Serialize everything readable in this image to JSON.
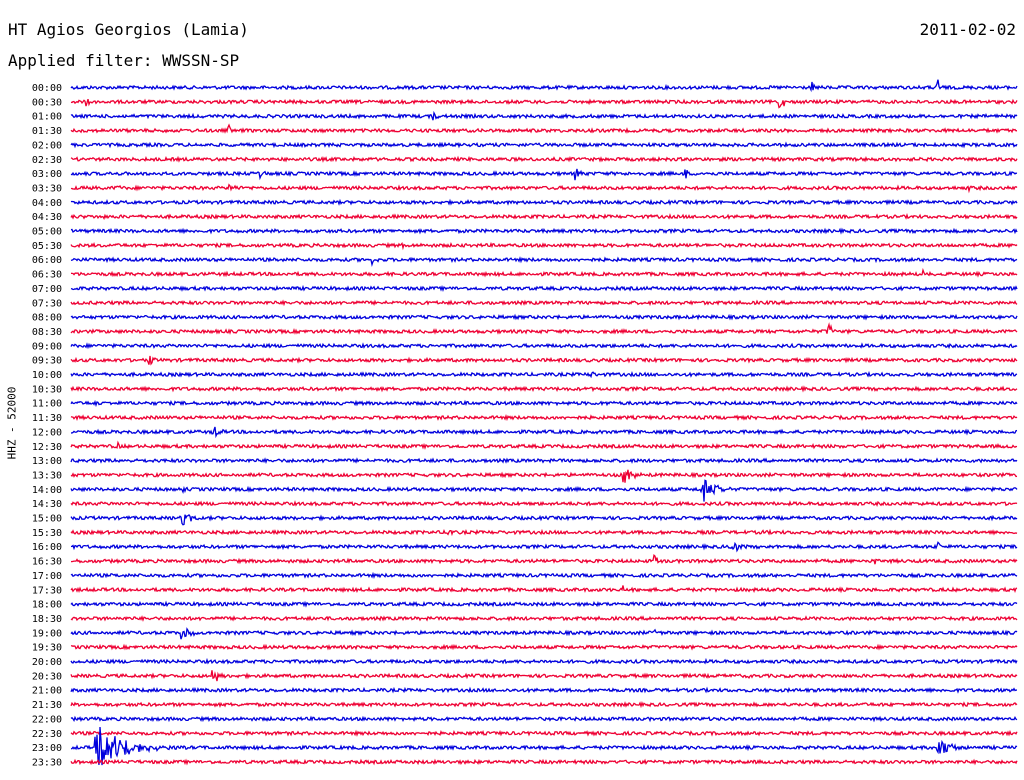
{
  "header": {
    "station": "HT Agios Georgios (Lamia)",
    "date": "2011-02-02",
    "filter": "Applied filter: WWSSN-SP"
  },
  "channel_label": "HHZ - 52000",
  "colors": {
    "even_trace": "#0000dd",
    "odd_trace": "#ee0033"
  },
  "chart_data": {
    "type": "line",
    "title": "HT Agios Georgios (Lamia)",
    "subtitle": "Applied filter: WWSSN-SP",
    "ylabel": "HHZ - 52000",
    "date": "2011-02-02",
    "y_tick_labels": [
      "00:00",
      "00:30",
      "01:00",
      "01:30",
      "02:00",
      "02:30",
      "03:00",
      "03:30",
      "04:00",
      "04:30",
      "05:00",
      "05:30",
      "06:00",
      "06:30",
      "07:00",
      "07:30",
      "08:00",
      "08:30",
      "09:00",
      "09:30",
      "10:00",
      "10:30",
      "11:00",
      "11:30",
      "12:00",
      "12:30",
      "13:00",
      "13:30",
      "14:00",
      "14:30",
      "15:00",
      "15:30",
      "16:00",
      "16:30",
      "17:00",
      "17:30",
      "18:00",
      "18:30",
      "19:00",
      "19:30",
      "20:00",
      "20:30",
      "21:00",
      "21:30",
      "22:00",
      "22:30",
      "23:00",
      "23:30"
    ],
    "trace_minutes": 30,
    "noise_level": 0.4,
    "events": [
      [
        0,
        23.5,
        5,
        1.2
      ],
      [
        0,
        27.5,
        5,
        1.2
      ],
      [
        1,
        0.5,
        9,
        1.0
      ],
      [
        1,
        22.5,
        6,
        3.0
      ],
      [
        2,
        11.5,
        7,
        0.8
      ],
      [
        3,
        5,
        8,
        0.9
      ],
      [
        6,
        6,
        6,
        0.9
      ],
      [
        6,
        16,
        11,
        0.9
      ],
      [
        6,
        19.5,
        3,
        1.0
      ],
      [
        7,
        1.5,
        5,
        0.4
      ],
      [
        7,
        5,
        11,
        1.0
      ],
      [
        7,
        28.5,
        3,
        0.5
      ],
      [
        9,
        1,
        3,
        0.3
      ],
      [
        9,
        10,
        2,
        0.3
      ],
      [
        11,
        6.5,
        5,
        0.3
      ],
      [
        11,
        8,
        5,
        0.3
      ],
      [
        11,
        10.5,
        4,
        0.3
      ],
      [
        12,
        6.5,
        3,
        0.5
      ],
      [
        12,
        9.5,
        9,
        0.8
      ],
      [
        13,
        6.5,
        3,
        0.3
      ],
      [
        13,
        27,
        9,
        0.4
      ],
      [
        16,
        6,
        3,
        0.3
      ],
      [
        17,
        24,
        12,
        1.3
      ],
      [
        19,
        2.5,
        8,
        0.8
      ],
      [
        20,
        16.5,
        4,
        0.6
      ],
      [
        22,
        0.8,
        6,
        0.5
      ],
      [
        22,
        17,
        2,
        0.3
      ],
      [
        24,
        4.5,
        11,
        1.3
      ],
      [
        25,
        1.5,
        5,
        0.5
      ],
      [
        27,
        17.5,
        22,
        1.3
      ],
      [
        28,
        3.5,
        7,
        0.6
      ],
      [
        28,
        20,
        34,
        1.7
      ],
      [
        29,
        14.5,
        2,
        0.2
      ],
      [
        30,
        3.5,
        24,
        0.9
      ],
      [
        31,
        12,
        6,
        0.8
      ],
      [
        31,
        20,
        2,
        0.2
      ],
      [
        31,
        22,
        3,
        0.4
      ],
      [
        32,
        21,
        17,
        0.8
      ],
      [
        32,
        27.5,
        5,
        0.8
      ],
      [
        33,
        18.5,
        6,
        1.0
      ],
      [
        33,
        22.5,
        5,
        0.6
      ],
      [
        33,
        25.5,
        3,
        0.5
      ],
      [
        35,
        17.5,
        4,
        0.4
      ],
      [
        37,
        1.3,
        2,
        0.2
      ],
      [
        37,
        20.5,
        2,
        0.2
      ],
      [
        37,
        21.5,
        2,
        0.2
      ],
      [
        38,
        3.5,
        17,
        1.3
      ],
      [
        38,
        18.5,
        5,
        0.7
      ],
      [
        41,
        4.5,
        14,
        1.4
      ],
      [
        41,
        21.5,
        4,
        0.4
      ],
      [
        46,
        0.8,
        80,
        3.0
      ],
      [
        46,
        27.5,
        24,
        1.8
      ]
    ]
  }
}
